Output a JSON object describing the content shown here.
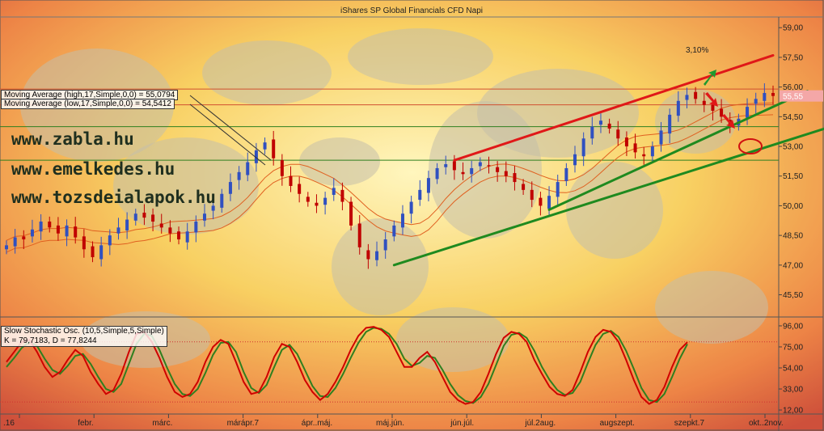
{
  "title": "iShares SP Global Financials CFD Napi",
  "price_tag": "55,55",
  "percent_label": "3,10%",
  "ma_high_label": "Moving Average (high,17,Simple,0,0) = 55,0794",
  "ma_low_label": "Moving Average (low,17,Simple,0,0) = 54,5412",
  "osc_label_1": "Slow Stochastic Osc. (10,5,Simple,5,Simple)",
  "osc_label_2": "K = 79,7183, D = 77,8244",
  "websites": [
    "www.zabla.hu",
    "www.emelkedes.hu",
    "www.tozsdeialapok.hu"
  ],
  "price_axis_labels": [
    "59,00",
    "57,50",
    "56,00",
    "54,50",
    "53,00",
    "51,50",
    "50,00",
    "48,50",
    "47,00",
    "45,50"
  ],
  "osc_axis_labels": [
    "96,00",
    "75,00",
    "54,00",
    "33,00",
    "12,00"
  ],
  "x_labels": [
    ".16",
    "febr.",
    "márc.",
    "márápr.7",
    "ápr..máj.",
    "máj.jún.",
    "jún.júl.",
    "júl.2aug.",
    "augszept.",
    "szepkt.7",
    "okt..2nov."
  ],
  "colors": {
    "k_line": "#d00000",
    "d_line": "#2f7f1f",
    "ma": "#e06020",
    "up_candle": "#3050c0",
    "down_candle": "#c00000",
    "trend_red": "#e01818",
    "trend_green": "#1f8a1f",
    "price_tag_bg": "#f4a7a7",
    "price_tag_fg": "#ffffff"
  },
  "chart_data": {
    "type": "candlestick",
    "title": "iShares SP Global Financials CFD Napi",
    "ylim": [
      44.5,
      59.5
    ],
    "price_series": [
      48.0,
      48.4,
      48.3,
      48.8,
      49.2,
      48.9,
      48.6,
      49.0,
      48.4,
      47.8,
      47.4,
      48.0,
      48.5,
      48.9,
      49.3,
      49.6,
      49.4,
      49.2,
      48.9,
      48.6,
      48.3,
      48.7,
      49.2,
      49.6,
      50.0,
      50.6,
      51.2,
      51.7,
      52.2,
      52.8,
      53.2,
      52.4,
      51.5,
      51.0,
      50.6,
      50.2,
      50.0,
      50.4,
      50.9,
      50.2,
      49.0,
      47.9,
      47.3,
      47.7,
      48.3,
      49.0,
      49.6,
      50.2,
      50.8,
      51.4,
      51.9,
      52.1,
      51.8,
      51.6,
      51.9,
      52.2,
      52.0,
      51.7,
      51.5,
      51.2,
      50.8,
      50.3,
      50.0,
      50.5,
      51.2,
      51.9,
      52.6,
      53.4,
      54.0,
      54.3,
      53.9,
      53.4,
      53.0,
      52.7,
      52.5,
      53.0,
      53.8,
      54.6,
      55.3,
      55.6,
      55.4,
      55.1,
      54.8,
      54.5,
      54.1,
      54.4,
      55.0,
      55.4,
      55.7,
      55.55
    ],
    "moving_averages": [
      {
        "name": "Moving Average (high,17,Simple,0,0)",
        "last": 55.0794
      },
      {
        "name": "Moving Average (low,17,Simple,0,0)",
        "last": 54.5412
      }
    ],
    "horizontal_levels": [
      55.9,
      55.1,
      54.0,
      52.3
    ],
    "trendlines": [
      {
        "color": "red",
        "from": {
          "i": 52,
          "y": 52.3
        },
        "to": {
          "i": 89,
          "y": 57.6
        }
      },
      {
        "color": "green",
        "from": {
          "i": 45,
          "y": 47.0
        },
        "to": {
          "i": 95,
          "y": 53.9
        }
      },
      {
        "color": "green",
        "from": {
          "i": 63,
          "y": 49.8
        },
        "to": {
          "i": 93,
          "y": 55.8
        }
      }
    ],
    "oscillator": {
      "name": "Slow Stochastic Osc. (10,5,Simple,5,Simple)",
      "ylim": [
        8,
        100
      ],
      "levels": [
        80,
        20
      ],
      "K": [
        60,
        70,
        80,
        82,
        70,
        55,
        45,
        50,
        62,
        72,
        66,
        50,
        38,
        28,
        32,
        48,
        70,
        88,
        90,
        80,
        64,
        45,
        30,
        25,
        28,
        40,
        60,
        75,
        82,
        78,
        60,
        40,
        28,
        30,
        45,
        65,
        78,
        75,
        60,
        42,
        30,
        22,
        28,
        40,
        55,
        72,
        86,
        94,
        95,
        92,
        85,
        70,
        55,
        55,
        64,
        70,
        60,
        45,
        30,
        22,
        18,
        20,
        30,
        48,
        68,
        84,
        90,
        88,
        80,
        62,
        48,
        35,
        28,
        26,
        32,
        50,
        70,
        85,
        92,
        90,
        80,
        62,
        42,
        25,
        18,
        22,
        35,
        55,
        72,
        79.7
      ],
      "D": [
        55,
        64,
        74,
        80,
        76,
        63,
        52,
        48,
        56,
        66,
        68,
        58,
        45,
        33,
        30,
        38,
        58,
        78,
        88,
        86,
        72,
        54,
        38,
        28,
        26,
        33,
        49,
        67,
        79,
        80,
        70,
        50,
        34,
        29,
        37,
        55,
        72,
        77,
        68,
        52,
        36,
        26,
        25,
        34,
        48,
        64,
        79,
        90,
        94,
        93,
        88,
        78,
        63,
        56,
        59,
        66,
        64,
        52,
        38,
        27,
        21,
        19,
        25,
        38,
        57,
        76,
        87,
        89,
        84,
        71,
        55,
        42,
        32,
        27,
        29,
        40,
        59,
        77,
        88,
        91,
        85,
        71,
        53,
        34,
        22,
        20,
        28,
        45,
        63,
        77.8
      ]
    },
    "x_tick_labels": [
      ".16",
      "febr.",
      "márc.",
      "márápr.7",
      "ápr..máj.",
      "máj.jún.",
      "jún.júl.",
      "júl.2aug.",
      "augszept.",
      "szepkt.7",
      "okt..2nov."
    ]
  }
}
